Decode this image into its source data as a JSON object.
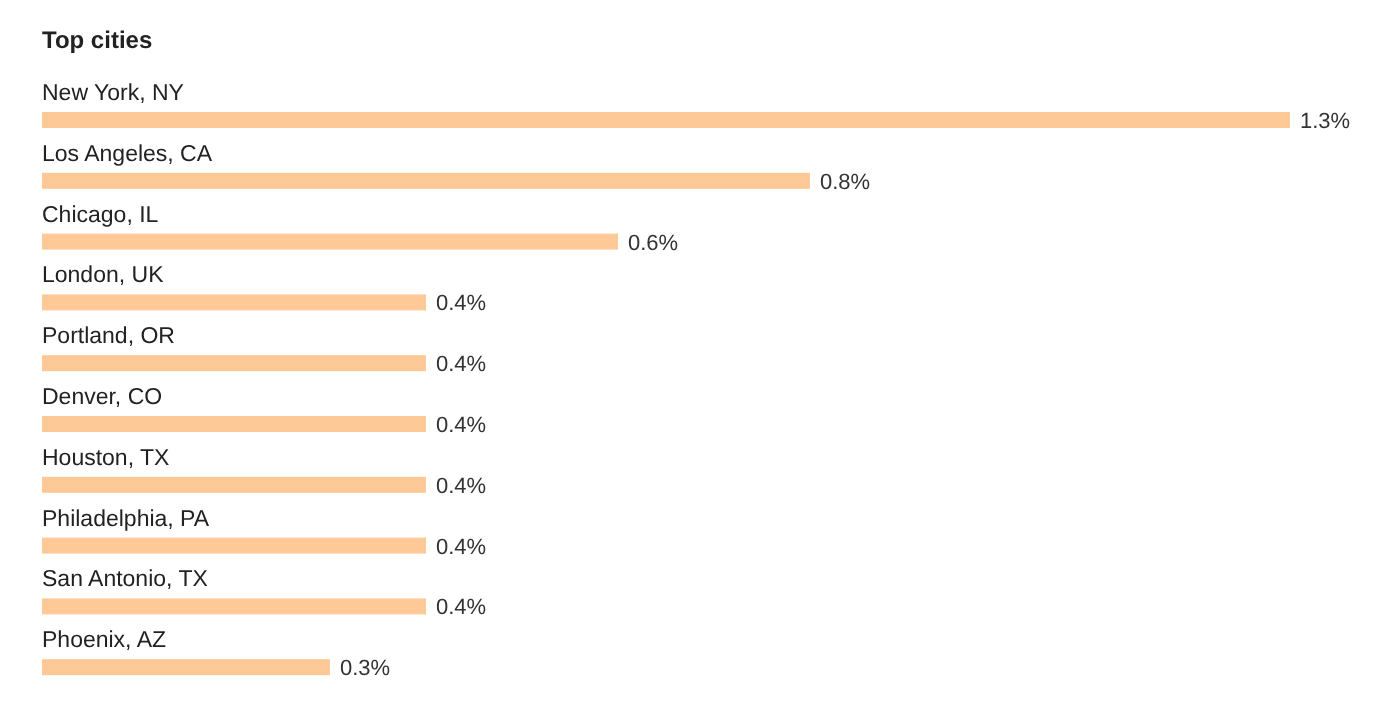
{
  "chart_data": {
    "type": "bar",
    "orientation": "horizontal",
    "title": "Top cities",
    "categories": [
      "New York, NY",
      "Los Angeles, CA",
      "Chicago, IL",
      "London, UK",
      "Portland, OR",
      "Denver, CO",
      "Houston, TX",
      "Philadelphia, PA",
      "San Antonio, TX",
      "Phoenix, AZ"
    ],
    "values": [
      1.3,
      0.8,
      0.6,
      0.4,
      0.4,
      0.4,
      0.4,
      0.4,
      0.4,
      0.3
    ],
    "value_labels": [
      "1.3%",
      "0.8%",
      "0.6%",
      "0.4%",
      "0.4%",
      "0.4%",
      "0.4%",
      "0.4%",
      "0.4%",
      "0.3%"
    ],
    "color": "#fdc996"
  }
}
